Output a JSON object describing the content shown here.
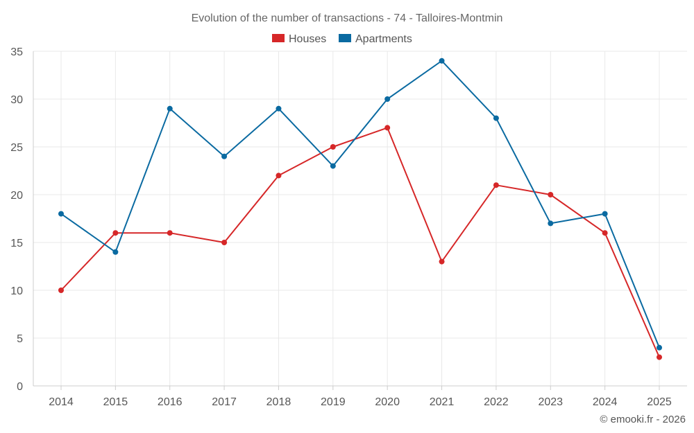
{
  "chart_data": {
    "type": "line",
    "title": "Evolution of the number of transactions - 74 - Talloires-Montmin",
    "categories": [
      "2014",
      "2015",
      "2016",
      "2017",
      "2018",
      "2019",
      "2020",
      "2021",
      "2022",
      "2023",
      "2024",
      "2025"
    ],
    "series": [
      {
        "name": "Houses",
        "color": "#d62728",
        "values": [
          10,
          16,
          16,
          15,
          22,
          25,
          27,
          13,
          21,
          20,
          16,
          3
        ]
      },
      {
        "name": "Apartments",
        "color": "#0a6aa1",
        "values": [
          18,
          14,
          29,
          24,
          29,
          23,
          30,
          34,
          28,
          17,
          18,
          4
        ]
      }
    ],
    "ylim": [
      0,
      35
    ],
    "yticks": [
      0,
      5,
      10,
      15,
      20,
      25,
      30,
      35
    ],
    "legend_position": "top-center",
    "grid": true
  },
  "credit": "© emooki.fr - 2026"
}
